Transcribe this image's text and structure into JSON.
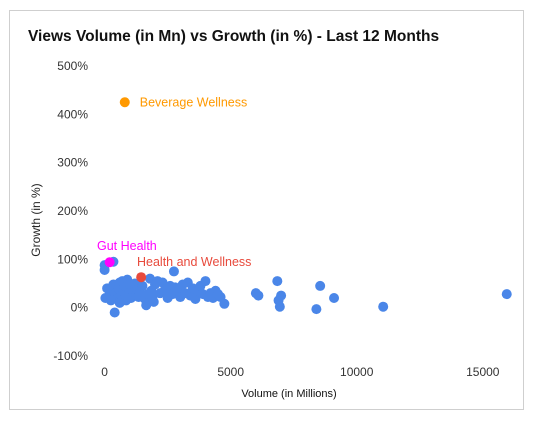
{
  "chart_data": {
    "type": "scatter",
    "title": "Views Volume (in Mn) vs Growth (in %) - Last 12 Months",
    "xlabel": "Volume (in Millions)",
    "ylabel": "Growth (in %)",
    "xlim": [
      -500,
      16000
    ],
    "ylim": [
      -100,
      500
    ],
    "x_ticks": [
      0,
      5000,
      10000,
      15000
    ],
    "x_tick_labels": [
      "0",
      "5000",
      "10000",
      "15000"
    ],
    "y_ticks": [
      -100,
      0,
      100,
      200,
      300,
      400,
      500
    ],
    "y_tick_labels": [
      "-100%",
      "0%",
      "100%",
      "200%",
      "300%",
      "400%",
      "500%"
    ],
    "grid": false,
    "default_color": "#4A86E8",
    "highlights": [
      {
        "label": "Beverage Wellness",
        "x": 800,
        "y": 425,
        "color": "#FF9900"
      },
      {
        "label": "Gut Health",
        "x": 200,
        "y": 94,
        "color": "#FF00FF"
      },
      {
        "label": "Health and Wellness",
        "x": 1450,
        "y": 63,
        "color": "#E84A3C"
      }
    ],
    "points": [
      [
        0,
        88
      ],
      [
        0,
        78
      ],
      [
        350,
        95
      ],
      [
        30,
        20
      ],
      [
        150,
        22
      ],
      [
        200,
        35
      ],
      [
        280,
        42
      ],
      [
        350,
        48
      ],
      [
        420,
        30
      ],
      [
        500,
        18
      ],
      [
        550,
        40
      ],
      [
        600,
        52
      ],
      [
        650,
        25
      ],
      [
        700,
        55
      ],
      [
        750,
        33
      ],
      [
        800,
        45
      ],
      [
        850,
        15
      ],
      [
        900,
        58
      ],
      [
        950,
        28
      ],
      [
        1000,
        48
      ],
      [
        1050,
        20
      ],
      [
        1100,
        40
      ],
      [
        1150,
        32
      ],
      [
        1200,
        50
      ],
      [
        1250,
        26
      ],
      [
        1300,
        38
      ],
      [
        1350,
        22
      ],
      [
        1400,
        30
      ],
      [
        1500,
        45
      ],
      [
        1600,
        18
      ],
      [
        1650,
        5
      ],
      [
        1700,
        28
      ],
      [
        1800,
        60
      ],
      [
        1850,
        35
      ],
      [
        1900,
        22
      ],
      [
        1950,
        12
      ],
      [
        2000,
        48
      ],
      [
        2100,
        55
      ],
      [
        2200,
        30
      ],
      [
        2300,
        52
      ],
      [
        2400,
        38
      ],
      [
        2500,
        20
      ],
      [
        2600,
        45
      ],
      [
        2700,
        28
      ],
      [
        2750,
        75
      ],
      [
        2800,
        42
      ],
      [
        2900,
        35
      ],
      [
        3000,
        22
      ],
      [
        3100,
        48
      ],
      [
        3200,
        30
      ],
      [
        3300,
        52
      ],
      [
        3400,
        25
      ],
      [
        3500,
        40
      ],
      [
        3600,
        18
      ],
      [
        3700,
        35
      ],
      [
        3800,
        45
      ],
      [
        3900,
        28
      ],
      [
        4000,
        55
      ],
      [
        4100,
        22
      ],
      [
        4200,
        30
      ],
      [
        4300,
        20
      ],
      [
        4400,
        35
      ],
      [
        4500,
        28
      ],
      [
        4600,
        22
      ],
      [
        4750,
        8
      ],
      [
        6000,
        30
      ],
      [
        6100,
        25
      ],
      [
        6850,
        55
      ],
      [
        6900,
        15
      ],
      [
        6950,
        2
      ],
      [
        7000,
        25
      ],
      [
        8400,
        -3
      ],
      [
        8550,
        45
      ],
      [
        9100,
        20
      ],
      [
        11050,
        2
      ],
      [
        15950,
        28
      ],
      [
        400,
        -10
      ],
      [
        100,
        40
      ],
      [
        250,
        15
      ],
      [
        600,
        10
      ]
    ]
  }
}
